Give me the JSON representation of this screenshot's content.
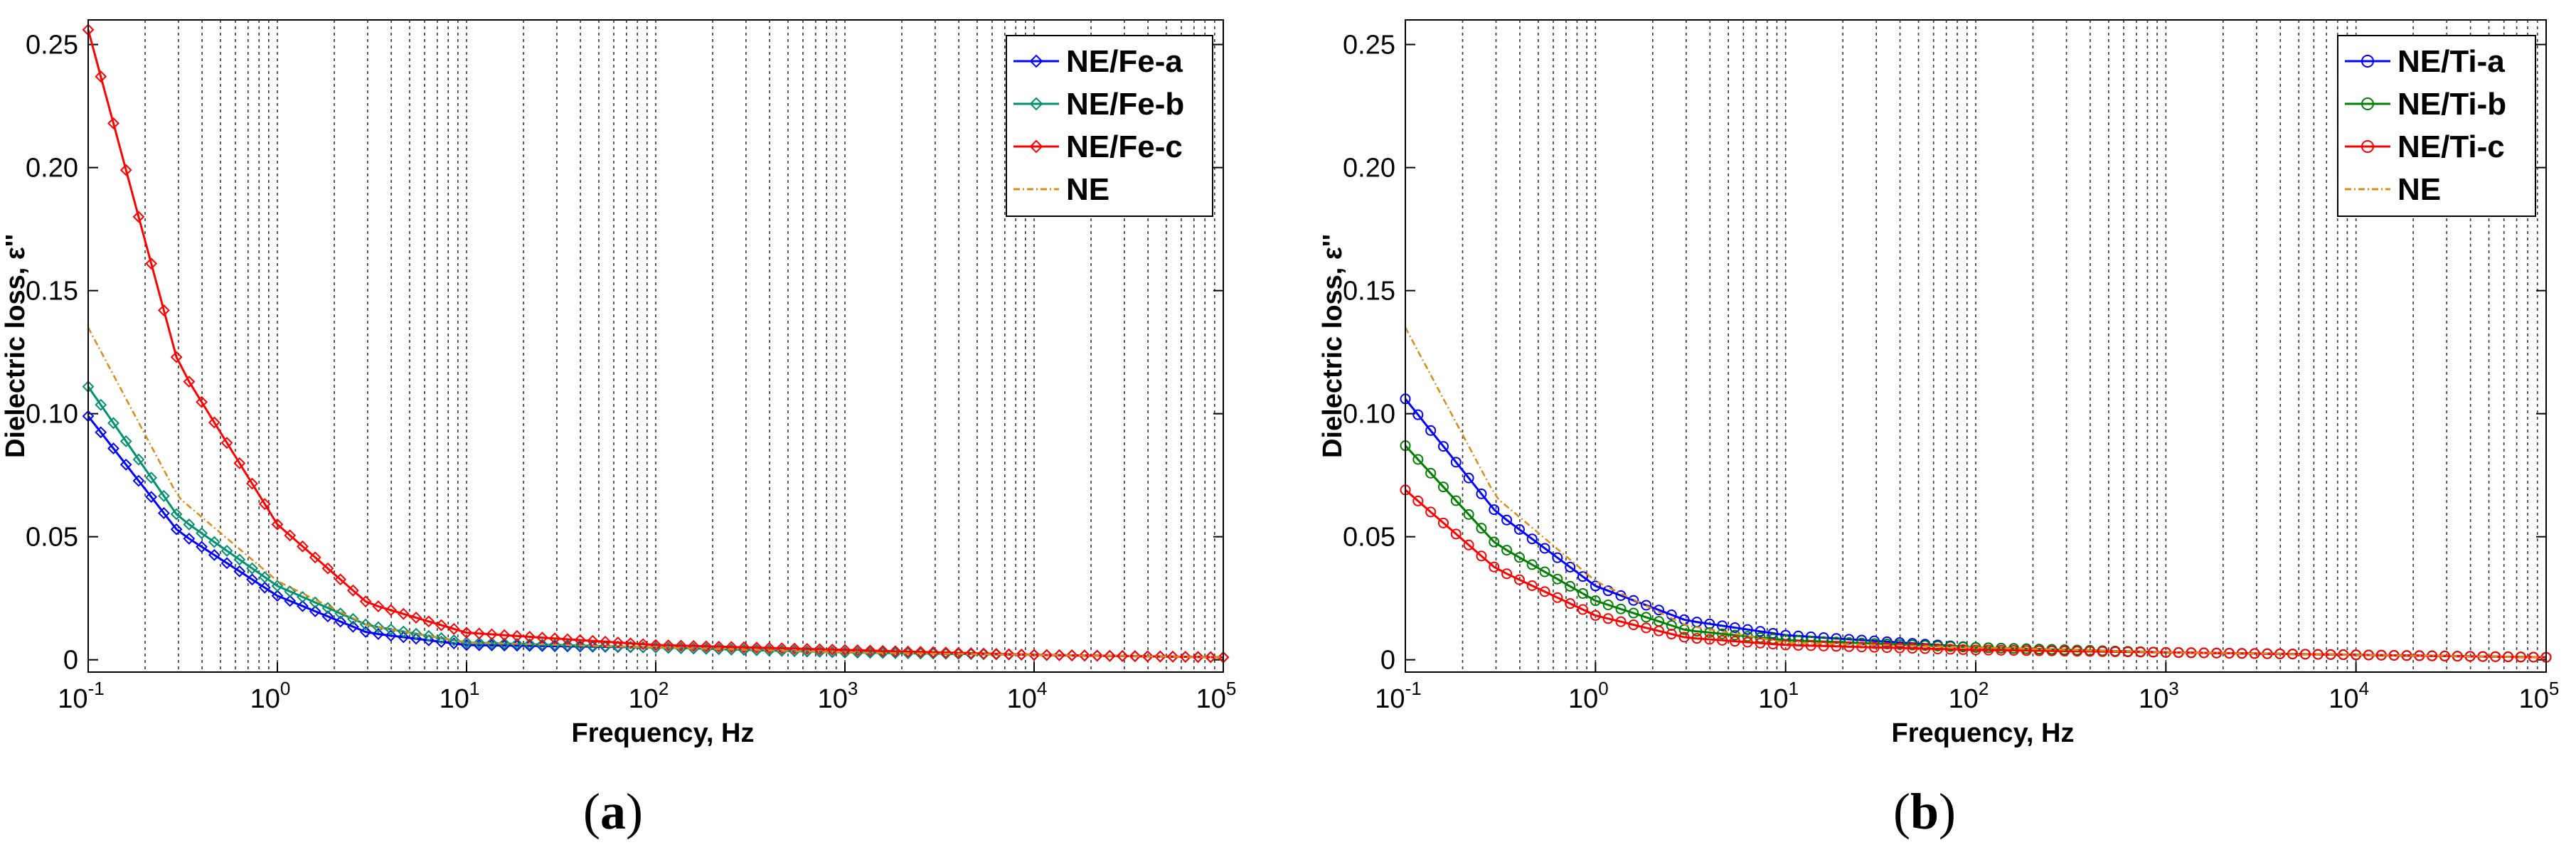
{
  "chart_data": [
    {
      "type": "line",
      "panel_label": "a",
      "xlabel": "Frequency, Hz",
      "ylabel": "Dielectric loss, ε''",
      "xscale": "log",
      "xlim": [
        0.1,
        100000
      ],
      "ylim": [
        -0.005,
        0.26
      ],
      "xticks": [
        {
          "base": "10",
          "exp": "-1"
        },
        {
          "base": "10",
          "exp": "0"
        },
        {
          "base": "10",
          "exp": "1"
        },
        {
          "base": "10",
          "exp": "2"
        },
        {
          "base": "10",
          "exp": "3"
        },
        {
          "base": "10",
          "exp": "4"
        },
        {
          "base": "10",
          "exp": "5"
        }
      ],
      "yticks": [
        "0",
        "0.05",
        "0.10",
        "0.15",
        "0.20",
        "0.25"
      ],
      "ytick_values": [
        0,
        0.05,
        0.1,
        0.15,
        0.2,
        0.25
      ],
      "grid": "x-minor dotted",
      "legend_position": "top-right",
      "series": [
        {
          "name": "NE/Fe-a",
          "color": "#0000ff",
          "marker": "diamond",
          "x": [
            0.1,
            0.3,
            1,
            3,
            10,
            100,
            1000,
            10000,
            100000
          ],
          "values": [
            0.099,
            0.052,
            0.026,
            0.011,
            0.006,
            0.005,
            0.003,
            0.002,
            0.001
          ]
        },
        {
          "name": "NE/Fe-b",
          "color": "#00916e",
          "marker": "diamond",
          "x": [
            0.1,
            0.3,
            1,
            3,
            10,
            100,
            1000,
            10000,
            100000
          ],
          "values": [
            0.111,
            0.058,
            0.03,
            0.014,
            0.007,
            0.005,
            0.003,
            0.002,
            0.001
          ]
        },
        {
          "name": "NE/Fe-c",
          "color": "#ff0000",
          "marker": "diamond",
          "x": [
            0.1,
            0.3,
            1,
            3,
            10,
            100,
            1000,
            10000,
            100000
          ],
          "values": [
            0.256,
            0.12,
            0.055,
            0.023,
            0.011,
            0.006,
            0.004,
            0.002,
            0.001
          ]
        },
        {
          "name": "NE",
          "color": "#d98c1a",
          "marker": "none",
          "dashed": true,
          "x": [
            0.1,
            0.3,
            1,
            3,
            10,
            100,
            1000,
            10000,
            100000
          ],
          "values": [
            0.135,
            0.066,
            0.032,
            0.014,
            0.007,
            0.005,
            0.003,
            0.002,
            0.001
          ]
        }
      ]
    },
    {
      "type": "line",
      "panel_label": "b",
      "xlabel": "Frequency, Hz",
      "ylabel": "Dielectric loss, ε''",
      "xscale": "log",
      "xlim": [
        0.1,
        100000
      ],
      "ylim": [
        -0.005,
        0.26
      ],
      "xticks": [
        {
          "base": "10",
          "exp": "-1"
        },
        {
          "base": "10",
          "exp": "0"
        },
        {
          "base": "10",
          "exp": "1"
        },
        {
          "base": "10",
          "exp": "2"
        },
        {
          "base": "10",
          "exp": "3"
        },
        {
          "base": "10",
          "exp": "4"
        },
        {
          "base": "10",
          "exp": "5"
        }
      ],
      "yticks": [
        "0",
        "0.05",
        "0.10",
        "0.15",
        "0.20",
        "0.25"
      ],
      "ytick_values": [
        0,
        0.05,
        0.1,
        0.15,
        0.2,
        0.25
      ],
      "grid": "x-minor dotted",
      "legend_position": "top-right",
      "series": [
        {
          "name": "NE/Ti-a",
          "color": "#0000ff",
          "marker": "circle",
          "x": [
            0.1,
            0.3,
            1,
            3,
            10,
            100,
            1000,
            10000,
            100000
          ],
          "values": [
            0.106,
            0.06,
            0.03,
            0.016,
            0.01,
            0.005,
            0.003,
            0.002,
            0.001
          ]
        },
        {
          "name": "NE/Ti-b",
          "color": "#008000",
          "marker": "circle",
          "x": [
            0.1,
            0.3,
            1,
            3,
            10,
            100,
            1000,
            10000,
            100000
          ],
          "values": [
            0.087,
            0.047,
            0.024,
            0.012,
            0.008,
            0.005,
            0.003,
            0.002,
            0.001
          ]
        },
        {
          "name": "NE/Ti-c",
          "color": "#ff0000",
          "marker": "circle",
          "x": [
            0.1,
            0.3,
            1,
            3,
            10,
            100,
            1000,
            10000,
            100000
          ],
          "values": [
            0.069,
            0.037,
            0.018,
            0.009,
            0.006,
            0.004,
            0.003,
            0.002,
            0.001
          ]
        },
        {
          "name": "NE",
          "color": "#d98c1a",
          "marker": "none",
          "dashed": true,
          "x": [
            0.1,
            0.3,
            1,
            3,
            10,
            100,
            1000,
            10000,
            100000
          ],
          "values": [
            0.135,
            0.066,
            0.032,
            0.014,
            0.007,
            0.005,
            0.003,
            0.002,
            0.001
          ]
        }
      ]
    }
  ]
}
